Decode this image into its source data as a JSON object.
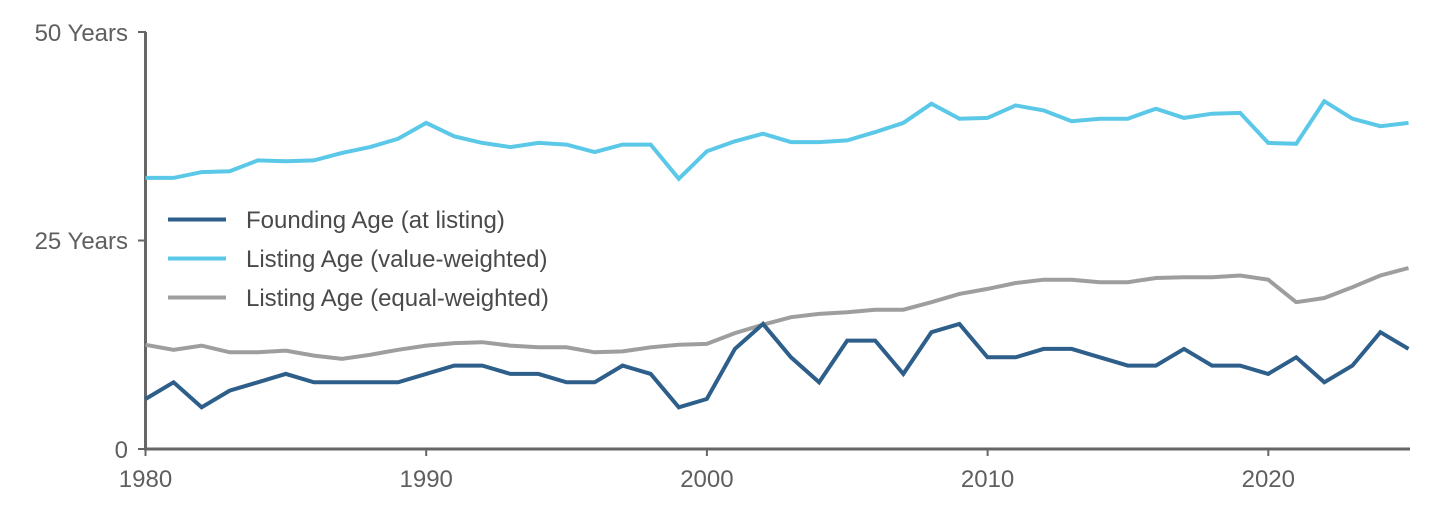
{
  "chart_data": {
    "type": "line",
    "title": "",
    "xlabel": "",
    "ylabel": "",
    "xlim": [
      1980,
      2025
    ],
    "ylim": [
      0,
      50
    ],
    "grid": false,
    "legend_position": "inside-left",
    "y_ticks": [
      {
        "value": 0,
        "label": "0"
      },
      {
        "value": 25,
        "label": "25 Years"
      },
      {
        "value": 50,
        "label": "50 Years"
      }
    ],
    "x_ticks": [
      {
        "value": 1980,
        "label": "1980"
      },
      {
        "value": 1990,
        "label": "1990"
      },
      {
        "value": 2000,
        "label": "2000"
      },
      {
        "value": 2010,
        "label": "2010"
      },
      {
        "value": 2020,
        "label": "2020"
      }
    ],
    "x": [
      1980,
      1981,
      1982,
      1983,
      1984,
      1985,
      1986,
      1987,
      1988,
      1989,
      1990,
      1991,
      1992,
      1993,
      1994,
      1995,
      1996,
      1997,
      1998,
      1999,
      2000,
      2001,
      2002,
      2003,
      2004,
      2005,
      2006,
      2007,
      2008,
      2009,
      2010,
      2011,
      2012,
      2013,
      2014,
      2015,
      2016,
      2017,
      2018,
      2019,
      2020,
      2021,
      2022,
      2023,
      2024,
      2025
    ],
    "series": [
      {
        "name": "Founding Age (at listing)",
        "color": "#2e5f8a",
        "values": [
          6,
          8,
          5,
          7,
          8,
          9,
          8,
          8,
          8,
          8,
          9,
          10,
          10,
          9,
          9,
          8,
          8,
          10,
          9,
          5,
          6,
          12,
          15,
          11,
          8,
          13,
          13,
          9,
          14,
          15,
          11,
          11,
          12,
          12,
          11,
          10,
          10,
          12,
          10,
          10,
          9,
          11,
          8,
          10,
          14,
          12
        ]
      },
      {
        "name": "Listing Age (value-weighted)",
        "color": "#5bc8e8",
        "values": [
          32.5,
          32.5,
          33.2,
          33.3,
          34.6,
          34.5,
          34.6,
          35.5,
          36.2,
          37.2,
          39.1,
          37.5,
          36.7,
          36.2,
          36.7,
          36.5,
          35.6,
          36.5,
          36.5,
          32.4,
          35.7,
          36.9,
          37.8,
          36.8,
          36.8,
          37.0,
          38.0,
          39.1,
          41.4,
          39.6,
          39.7,
          41.2,
          40.6,
          39.3,
          39.6,
          39.6,
          40.8,
          39.7,
          40.2,
          40.3,
          36.7,
          36.6,
          41.7,
          39.6,
          38.7,
          39.1
        ]
      },
      {
        "name": "Listing Age (equal-weighted)",
        "color": "#9e9e9e",
        "values": [
          12.5,
          11.9,
          12.4,
          11.6,
          11.6,
          11.8,
          11.2,
          10.8,
          11.3,
          11.9,
          12.4,
          12.7,
          12.8,
          12.4,
          12.2,
          12.2,
          11.6,
          11.7,
          12.2,
          12.5,
          12.6,
          13.9,
          14.9,
          15.8,
          16.2,
          16.4,
          16.7,
          16.7,
          17.6,
          18.6,
          19.2,
          19.9,
          20.3,
          20.3,
          20.0,
          20.0,
          20.5,
          20.6,
          20.6,
          20.8,
          20.3,
          17.6,
          18.1,
          19.4,
          20.8,
          21.7
        ]
      }
    ]
  },
  "legend": {
    "items": [
      {
        "label": "Founding Age (at listing)",
        "color": "#2e5f8a"
      },
      {
        "label": "Listing Age (value-weighted)",
        "color": "#5bc8e8"
      },
      {
        "label": "Listing Age (equal-weighted)",
        "color": "#9e9e9e"
      }
    ]
  },
  "axes": {
    "y_labels": [
      "50 Years",
      "25 Years",
      "0"
    ],
    "x_labels": [
      "1980",
      "1990",
      "2000",
      "2010",
      "2020"
    ]
  }
}
